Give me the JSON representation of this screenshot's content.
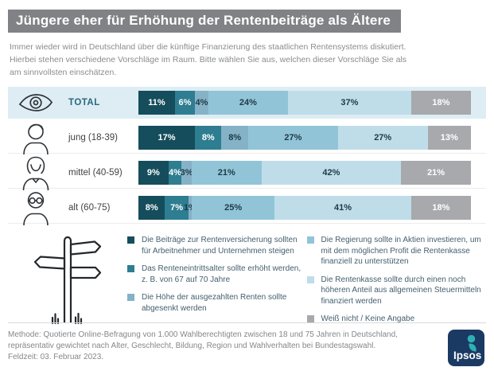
{
  "title": "Jüngere eher für Erhöhung der Rentenbeiträge als Ältere",
  "intro": "Immer wieder wird in Deutschland über die künftige Finanzierung des staatlichen Rentensystems diskutiert. Hierbei stehen verschiedene Vorschläge im Raum. Bitte wählen Sie aus, welchen dieser Vorschläge Sie als am sinnvollsten einschätzen.",
  "chart_data": {
    "type": "bar",
    "variant": "stacked-horizontal",
    "unit": "%",
    "xlim": [
      0,
      100
    ],
    "legend_position": "bottom",
    "categories": [
      "TOTAL",
      "jung (18-39)",
      "mittel (40-59)",
      "alt (60-75)"
    ],
    "rows": [
      {
        "label": "TOTAL",
        "icon": "eye-icon",
        "highlight": true
      },
      {
        "label": "jung (18-39)",
        "icon": "young-person-icon",
        "highlight": false
      },
      {
        "label": "mittel (40-59)",
        "icon": "middle-aged-woman-icon",
        "highlight": false
      },
      {
        "label": "alt (60-75)",
        "icon": "older-man-icon",
        "highlight": false
      }
    ],
    "series": [
      {
        "name": "Die Beiträge zur Rentenversicherung sollten für Arbeitnehmer und Unternehmen steigen",
        "color": "#154d5c",
        "text_color": "#ffffff",
        "values": [
          11,
          17,
          9,
          8
        ]
      },
      {
        "name": "Das Renteneintrittsalter sollte erhöht werden, z. B. von 67 auf 70 Jahre",
        "color": "#2e7d91",
        "text_color": "#ffffff",
        "values": [
          6,
          8,
          4,
          7
        ]
      },
      {
        "name": "Die Höhe der ausgezahlten Renten sollte abgesenkt werden",
        "color": "#85b2c6",
        "text_color": "#1e3947",
        "values": [
          4,
          8,
          3,
          1
        ]
      },
      {
        "name": "Die Regierung sollte in Aktien investieren, um mit dem möglichen Profit die Rentenkasse finanziell zu unterstützen",
        "color": "#92c4d8",
        "text_color": "#1e3947",
        "values": [
          24,
          27,
          21,
          25
        ]
      },
      {
        "name": "Die Rentenkasse sollte durch einen noch höheren Anteil aus allgemeinen Steuermitteln finanziert werden",
        "color": "#bfdde9",
        "text_color": "#1e3947",
        "values": [
          37,
          27,
          42,
          41
        ]
      },
      {
        "name": "Weiß nicht / Keine Angabe",
        "color": "#a7a9ac",
        "text_color": "#ffffff",
        "values": [
          18,
          13,
          21,
          18
        ]
      }
    ]
  },
  "footer": {
    "method": "Methode: Quotierte Online-Befragung von 1.000 Wahlberechtigten zwischen 18 und 75 Jahren in Deutschland, repräsentativ gewichtet nach Alter, Geschlecht, Bildung, Region und Wahlverhalten bei Bundestagswahl.",
    "fieldwork": "Feldzeit: 03. Februar 2023.",
    "logo_text": "Ipsos"
  },
  "colors": {
    "title_bar_bg": "#808285",
    "highlight_row_bg": "#ddedf3",
    "accent_teal": "#2e7d91",
    "logo_navy": "#1a3a63",
    "logo_teal": "#2fb0b5"
  }
}
